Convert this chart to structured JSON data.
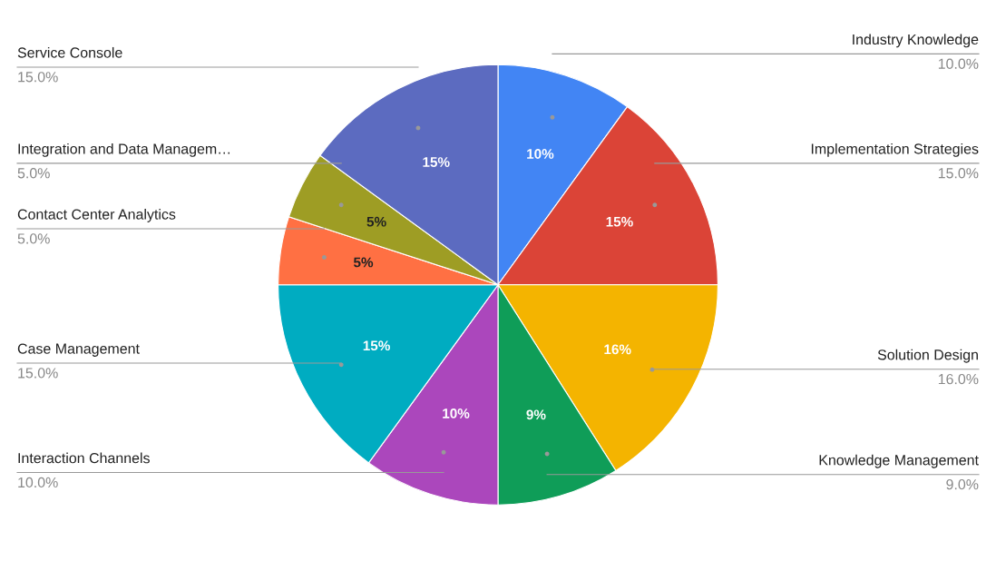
{
  "chart_data": {
    "type": "pie",
    "categories": [
      "Industry Knowledge",
      "Implementation Strategies",
      "Solution Design",
      "Knowledge Management",
      "Interaction Channels",
      "Case Management",
      "Contact Center Analytics",
      "Integration and Data Managem…",
      "Service Console"
    ],
    "values": [
      10,
      15,
      16,
      9,
      10,
      15,
      5,
      5,
      15
    ],
    "colors": [
      "#4285f4",
      "#db4437",
      "#f4b400",
      "#0f9d58",
      "#ab47bc",
      "#00acc1",
      "#ff7043",
      "#9e9d24",
      "#5c6bc0"
    ],
    "value_labels": [
      "10%",
      "15%",
      "16%",
      "9%",
      "10%",
      "15%",
      "5%",
      "5%",
      "15%"
    ],
    "annotations": [
      "10.0%",
      "15.0%",
      "16.0%",
      "9.0%",
      "10.0%",
      "15.0%",
      "5.0%",
      "5.0%",
      "15.0%"
    ],
    "legend": false
  }
}
